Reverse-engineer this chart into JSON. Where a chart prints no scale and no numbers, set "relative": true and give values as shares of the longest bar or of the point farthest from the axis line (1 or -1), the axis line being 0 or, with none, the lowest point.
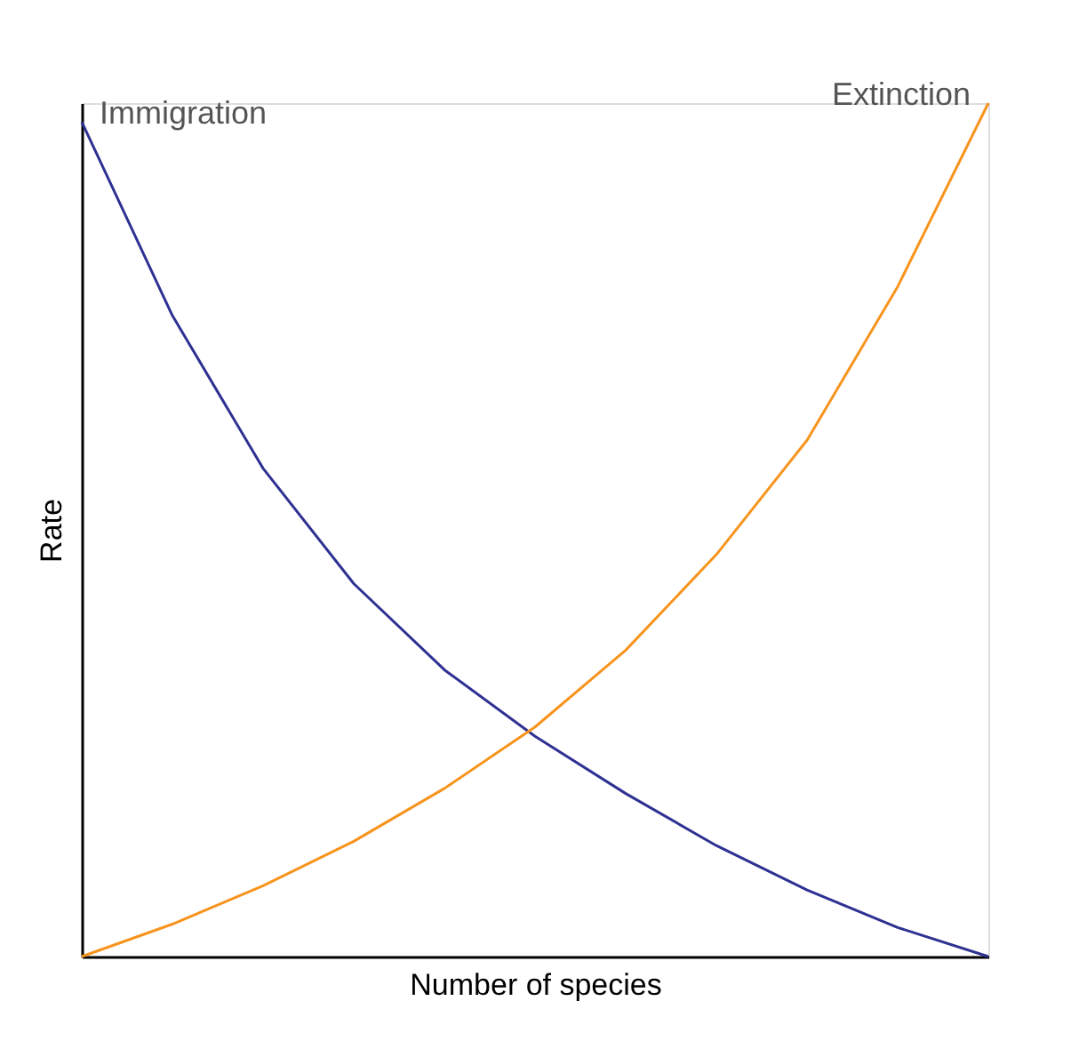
{
  "chart_data": {
    "type": "line",
    "relative": true,
    "xlabel": "Number of species",
    "ylabel": "Rate",
    "tick_labels": false,
    "legend": false,
    "categories": [
      null,
      null,
      null,
      null,
      null,
      null,
      null,
      null,
      null,
      null,
      null
    ],
    "series": [
      {
        "name": "Immigration",
        "color": "#2e3192",
        "values": [
          0.978,
          0.751,
          0.572,
          0.437,
          0.336,
          0.258,
          0.191,
          0.13,
          0.078,
          0.034,
          0
        ]
      },
      {
        "name": "Extinction",
        "color": "#f7941d",
        "values": [
          0,
          0.038,
          0.083,
          0.135,
          0.197,
          0.269,
          0.359,
          0.471,
          0.605,
          0.785,
          1
        ]
      }
    ]
  }
}
